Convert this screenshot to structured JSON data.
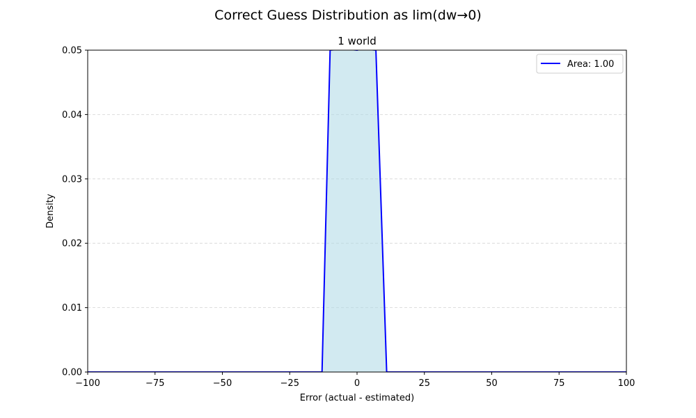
{
  "figure": {
    "suptitle": "Correct Guess Distribution as lim(dw→0)"
  },
  "chart_data": {
    "type": "area",
    "title": "1 world",
    "xlabel": "Error (actual - estimated)",
    "ylabel": "Density",
    "xlim": [
      -100,
      100
    ],
    "ylim": [
      0,
      0.05
    ],
    "xticks": [
      -100,
      -75,
      -50,
      -25,
      0,
      25,
      50,
      75,
      100
    ],
    "xtick_labels": [
      "−100",
      "−75",
      "−50",
      "−25",
      "0",
      "25",
      "50",
      "75",
      "100"
    ],
    "yticks": [
      0.0,
      0.01,
      0.02,
      0.03,
      0.04,
      0.05
    ],
    "ytick_labels": [
      "0.00",
      "0.01",
      "0.02",
      "0.03",
      "0.04",
      "0.05"
    ],
    "grid": {
      "y": true,
      "x": false,
      "style": "dashed"
    },
    "legend_position": "top-right",
    "series": [
      {
        "name": "Area: 1.00",
        "color": "#0000ff",
        "fill_color": "#add8e6",
        "x": [
          -100,
          -13,
          -10,
          -5,
          0,
          2,
          7,
          11,
          100
        ],
        "y": [
          0,
          0,
          0.05,
          0.0502,
          0.05,
          0.0502,
          0.05,
          0,
          0
        ]
      }
    ]
  }
}
